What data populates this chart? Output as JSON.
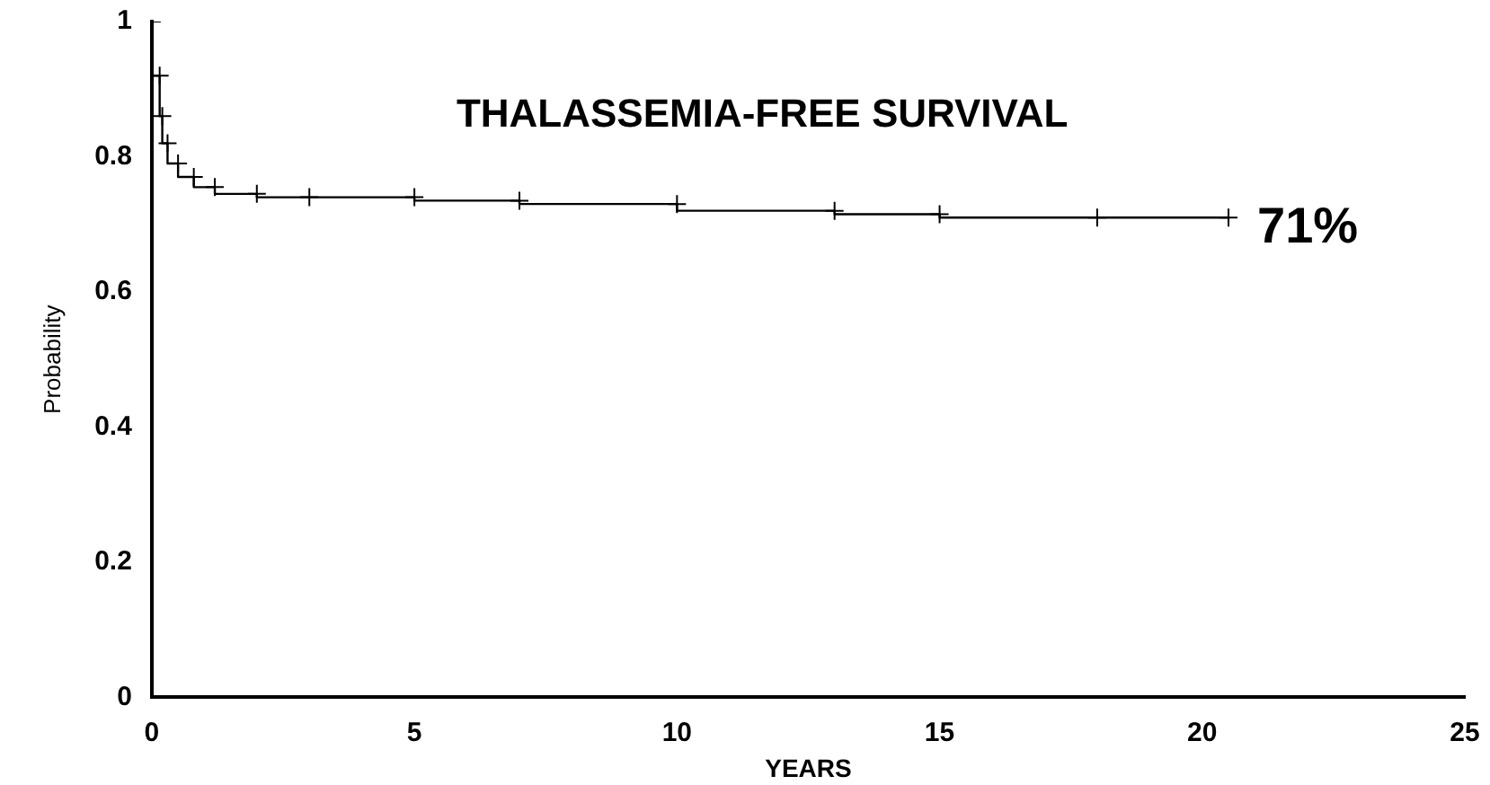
{
  "chart_data": {
    "type": "step",
    "ylabel": "Probability",
    "xlabel": "YEARS",
    "x": [
      0,
      0.15,
      0.2,
      0.3,
      0.5,
      0.8,
      1.2,
      2,
      3,
      5,
      7,
      10,
      13,
      15,
      18,
      20.5
    ],
    "series": [
      {
        "color": "#000000",
        "values": [
          1,
          0.92,
          0.86,
          0.82,
          0.79,
          0.77,
          0.755,
          0.745,
          0.74,
          0.74,
          0.735,
          0.73,
          0.72,
          0.715,
          0.71,
          0.71
        ]
      }
    ],
    "xlim": [
      0,
      25
    ],
    "xticks": [
      0,
      5,
      10,
      15,
      20,
      25
    ],
    "ylim": [
      0,
      1
    ],
    "yticks": [
      0,
      0.2,
      0.4,
      0.6,
      0.8,
      1
    ],
    "grid": false,
    "marker": "cross",
    "line_style": "solid",
    "annotations": [
      "THALASSEMIA-FREE SURVIVAL",
      {
        "text": "71%",
        "x": 20.5,
        "y": 0.71
      }
    ]
  }
}
